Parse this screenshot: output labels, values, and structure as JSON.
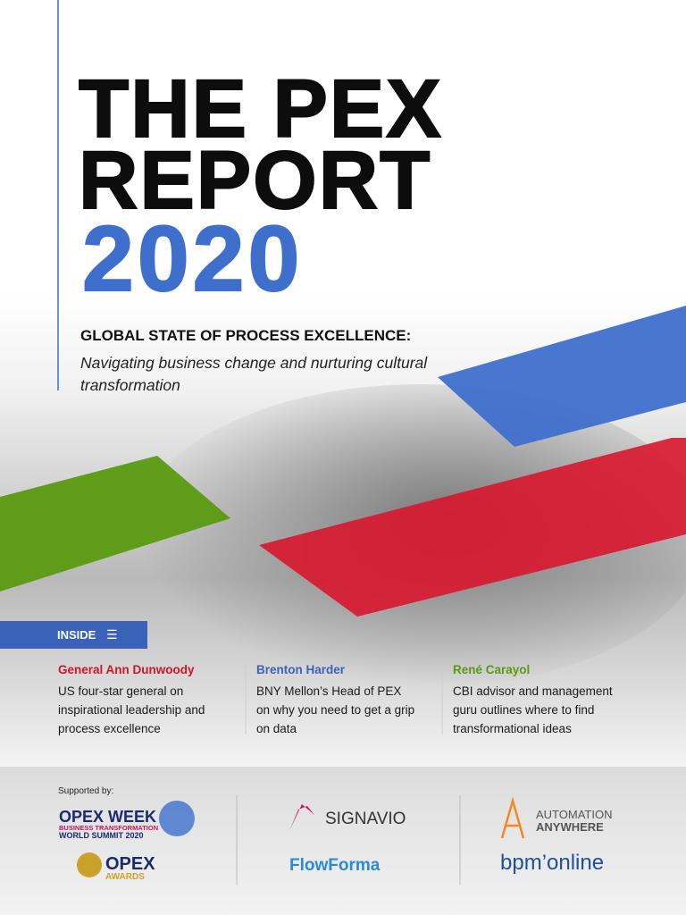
{
  "cover": {
    "title_lines": [
      "THE PEX",
      "REPORT"
    ],
    "year": "2020",
    "subtitle": "GLOBAL STATE OF PROCESS EXCELLENCE:",
    "tagline": "Navigating business change and nurturing cultural transformation"
  },
  "inside": {
    "label": "INSIDE",
    "items": [
      {
        "name": "General Ann Dunwoody",
        "text": "US four-star general on inspirational leadership and process excellence"
      },
      {
        "name": "Brenton Harder",
        "text": "BNY Mellon’s Head of PEX on why you need to get a grip on data"
      },
      {
        "name": "René Carayol",
        "text": "CBI advisor and management guru outlines where to find transformational ideas"
      }
    ]
  },
  "footer": {
    "supported_by": "Supported by:",
    "logos": {
      "opex_week": "OPEX WEEK",
      "opex_week_sub1": "BUSINESS TRANSFORMATION",
      "opex_week_sub2": "WORLD SUMMIT 2020",
      "opex_awards": "OPEX",
      "opex_awards_sub": "AWARDS",
      "signavio": "SIGNAVIO",
      "flowforma": "FlowForma",
      "automation": "AUTOMATION",
      "anywhere": "ANYWHERE",
      "bpmonline": "bpm’online"
    }
  }
}
